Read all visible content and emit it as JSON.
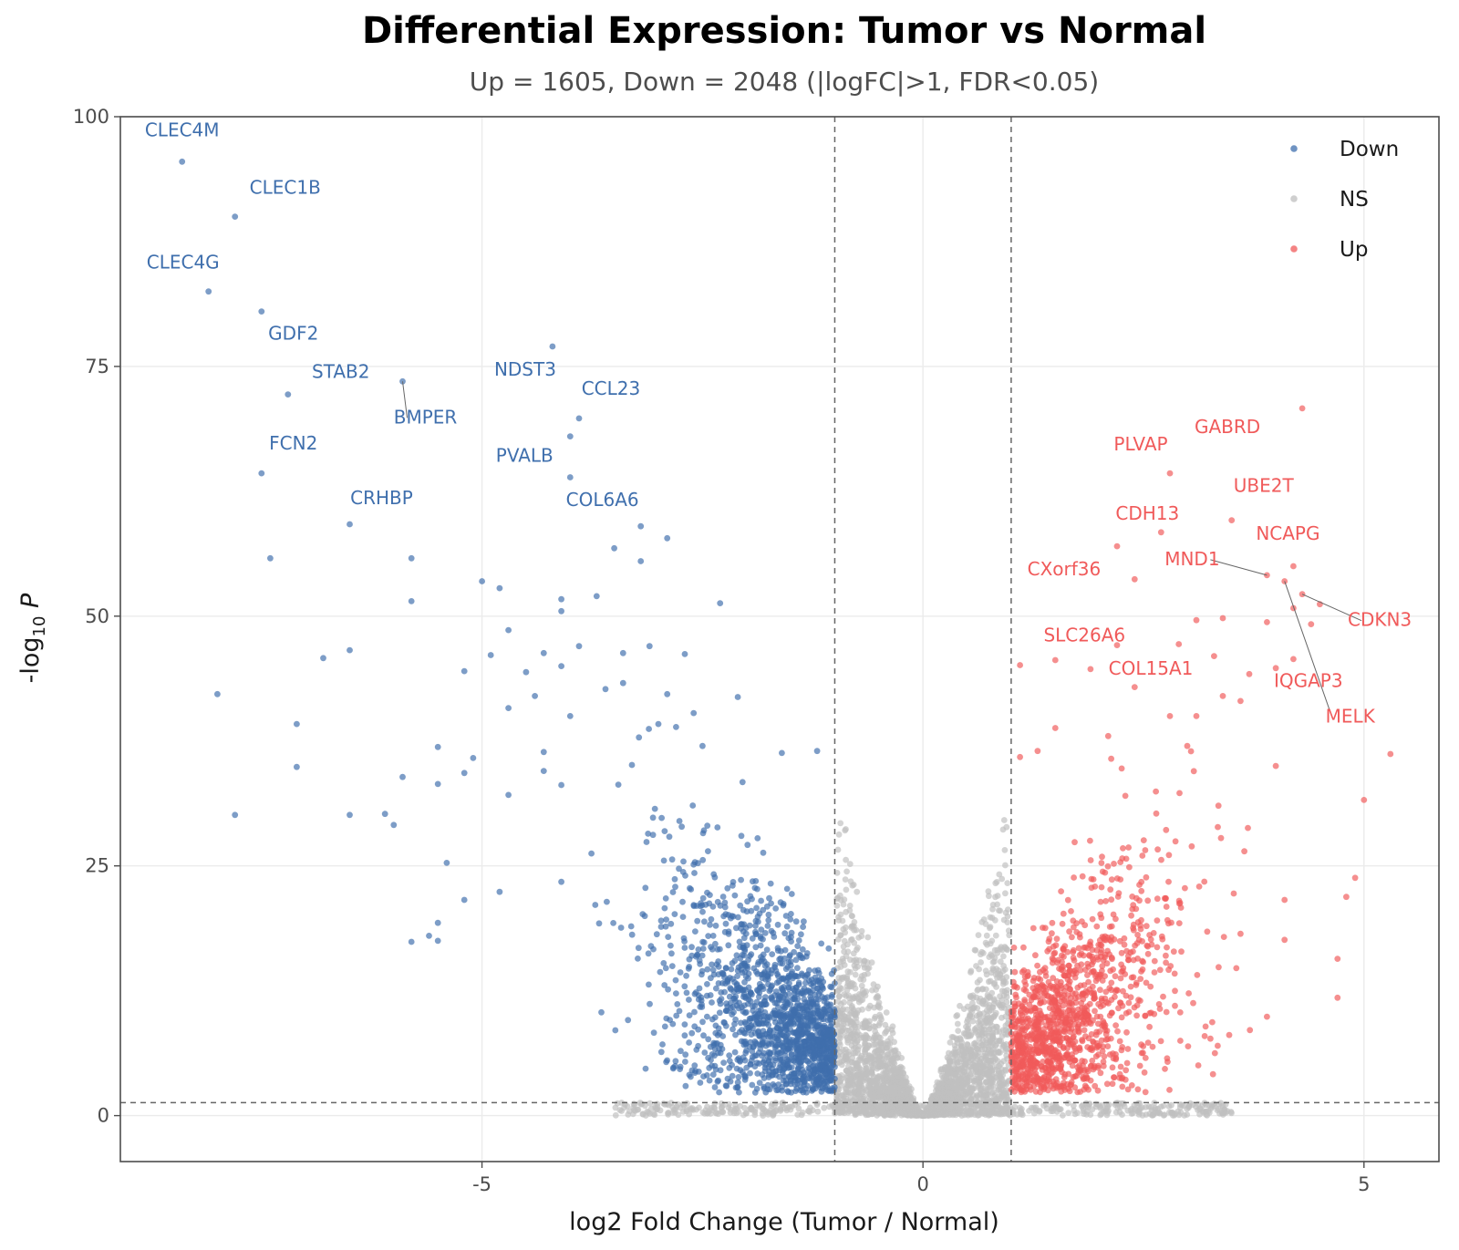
{
  "chart_data": {
    "type": "scatter",
    "title": "Differential Expression: Tumor vs Normal",
    "subtitle": "Up = 1605, Down = 2048  (|logFC|>1, FDR<0.05)",
    "xlabel": "log2 Fold Change (Tumor / Normal)",
    "ylabel": "-log10 P",
    "xlim": [
      -9.1,
      5.85
    ],
    "ylim": [
      -4.6,
      100
    ],
    "x_ticks": [
      -5,
      0,
      5
    ],
    "x_tick_labels": [
      "-5",
      "0",
      "5"
    ],
    "y_ticks": [
      0,
      25,
      50,
      75,
      100
    ],
    "y_tick_labels": [
      "0",
      "25",
      "50",
      "75",
      "100"
    ],
    "thresholds": {
      "logfc": 1,
      "neg_log10_fdr": 1.3
    },
    "grid": true,
    "legend": {
      "placement": "top-right",
      "entries": [
        {
          "label": "Down",
          "color": "#3f6fad"
        },
        {
          "label": "NS",
          "color": "#bfbfbf"
        },
        {
          "label": "Up",
          "color": "#f05a5a"
        }
      ]
    },
    "colors": {
      "Down": "#3f6fad",
      "NS": "#bfbfbf",
      "Up": "#f05a5a"
    },
    "counts": {
      "Up": 1605,
      "Down": 2048
    },
    "highlighted_points": {
      "Down": [
        [
          -8.4,
          95.5
        ],
        [
          -7.8,
          90.0
        ],
        [
          -8.1,
          82.5
        ],
        [
          -7.5,
          80.5
        ],
        [
          -7.2,
          72.2
        ],
        [
          -5.9,
          73.5
        ],
        [
          -7.5,
          64.3
        ],
        [
          -6.5,
          59.2
        ],
        [
          -7.4,
          55.8
        ],
        [
          -4.2,
          77.0
        ],
        [
          -3.9,
          69.8
        ],
        [
          -4.0,
          68.0
        ],
        [
          -4.0,
          63.9
        ],
        [
          -3.2,
          59.0
        ],
        [
          -2.9,
          57.8
        ],
        [
          -3.5,
          56.8
        ],
        [
          -3.2,
          55.5
        ],
        [
          -5.8,
          55.8
        ],
        [
          -5.0,
          53.5
        ],
        [
          -4.8,
          52.8
        ],
        [
          -3.7,
          52.0
        ],
        [
          -4.1,
          51.7
        ],
        [
          -4.1,
          50.5
        ],
        [
          -5.8,
          51.5
        ],
        [
          -2.3,
          51.3
        ],
        [
          -6.5,
          46.6
        ],
        [
          -6.8,
          45.8
        ],
        [
          -8.0,
          42.2
        ],
        [
          -7.1,
          39.2
        ],
        [
          -7.1,
          34.9
        ],
        [
          -7.8,
          30.1
        ],
        [
          -6.5,
          30.1
        ],
        [
          -6.1,
          30.2
        ],
        [
          -5.9,
          33.9
        ],
        [
          -5.5,
          33.2
        ],
        [
          -5.2,
          34.3
        ],
        [
          -5.1,
          35.8
        ],
        [
          -5.5,
          36.9
        ],
        [
          -5.4,
          25.3
        ],
        [
          -5.2,
          21.6
        ],
        [
          -5.8,
          17.4
        ],
        [
          -5.6,
          18.0
        ],
        [
          -5.5,
          19.3
        ],
        [
          -5.5,
          17.5
        ],
        [
          -6.0,
          29.1
        ],
        [
          -4.7,
          48.6
        ],
        [
          -4.9,
          46.1
        ],
        [
          -4.5,
          44.4
        ],
        [
          -4.3,
          46.3
        ],
        [
          -4.1,
          45.0
        ],
        [
          -4.0,
          40.0
        ],
        [
          -3.9,
          47.0
        ],
        [
          -3.4,
          46.3
        ],
        [
          -3.1,
          47.0
        ],
        [
          -2.7,
          46.2
        ],
        [
          -2.9,
          42.2
        ],
        [
          -2.6,
          40.3
        ],
        [
          -2.1,
          41.9
        ],
        [
          -3.0,
          39.2
        ],
        [
          -4.3,
          36.4
        ],
        [
          -4.3,
          34.5
        ],
        [
          -4.1,
          33.1
        ],
        [
          -4.7,
          32.1
        ],
        [
          -3.3,
          35.1
        ],
        [
          -2.5,
          37.0
        ],
        [
          -1.6,
          36.3
        ],
        [
          -1.2,
          36.5
        ],
        [
          -4.1,
          23.4
        ],
        [
          -4.8,
          22.4
        ],
        [
          -5.2,
          44.5
        ],
        [
          -4.4,
          42.0
        ],
        [
          -3.6,
          42.7
        ],
        [
          -3.4,
          43.3
        ],
        [
          -2.8,
          38.9
        ],
        [
          -4.7,
          40.8
        ]
      ],
      "Up": [
        [
          4.3,
          70.8
        ],
        [
          2.8,
          64.3
        ],
        [
          3.5,
          59.6
        ],
        [
          2.7,
          58.4
        ],
        [
          2.2,
          57.0
        ],
        [
          2.4,
          53.7
        ],
        [
          4.1,
          53.5
        ],
        [
          3.9,
          54.1
        ],
        [
          4.2,
          55.0
        ],
        [
          4.3,
          52.2
        ],
        [
          4.5,
          51.2
        ],
        [
          4.2,
          50.8
        ],
        [
          4.4,
          49.2
        ],
        [
          5.3,
          36.2
        ],
        [
          5.0,
          31.6
        ],
        [
          4.0,
          35.0
        ],
        [
          4.8,
          21.9
        ],
        [
          4.9,
          23.8
        ],
        [
          4.7,
          15.7
        ],
        [
          4.7,
          11.8
        ],
        [
          4.1,
          21.6
        ],
        [
          4.1,
          17.6
        ],
        [
          3.6,
          18.2
        ],
        [
          3.9,
          9.9
        ],
        [
          3.1,
          49.6
        ],
        [
          3.4,
          49.8
        ],
        [
          3.9,
          49.4
        ],
        [
          2.9,
          47.2
        ],
        [
          2.2,
          47.1
        ],
        [
          1.9,
          44.7
        ],
        [
          1.5,
          45.6
        ],
        [
          1.1,
          45.1
        ],
        [
          3.3,
          46.0
        ],
        [
          3.7,
          44.2
        ],
        [
          3.4,
          42.0
        ],
        [
          3.1,
          40.0
        ],
        [
          2.8,
          40.0
        ],
        [
          2.4,
          42.9
        ],
        [
          2.1,
          38.0
        ],
        [
          1.5,
          38.8
        ],
        [
          1.3,
          36.5
        ],
        [
          1.1,
          35.9
        ],
        [
          3.6,
          41.5
        ],
        [
          4.0,
          44.8
        ],
        [
          4.2,
          45.7
        ]
      ]
    },
    "point_cloud_note_free": [],
    "gene_labels": {
      "Down": [
        {
          "gene": "CLEC4M",
          "x": -8.4,
          "y": 95.5
        },
        {
          "gene": "CLEC1B",
          "x": -7.8,
          "y": 90.0
        },
        {
          "gene": "CLEC4G",
          "x": -8.1,
          "y": 82.5
        },
        {
          "gene": "GDF2",
          "x": -7.5,
          "y": 80.5
        },
        {
          "gene": "STAB2",
          "x": -7.2,
          "y": 72.2
        },
        {
          "gene": "BMPER",
          "x": -5.9,
          "y": 73.5
        },
        {
          "gene": "NDST3",
          "x": -4.2,
          "y": 77.0
        },
        {
          "gene": "CCL23",
          "x": -3.9,
          "y": 69.8
        },
        {
          "gene": "FCN2",
          "x": -7.5,
          "y": 64.3
        },
        {
          "gene": "PVALB",
          "x": -4.0,
          "y": 63.9
        },
        {
          "gene": "CRHBP",
          "x": -6.5,
          "y": 59.2
        },
        {
          "gene": "COL6A6",
          "x": -3.2,
          "y": 59.0
        }
      ],
      "Up": [
        {
          "gene": "GABRD",
          "x": 4.3,
          "y": 70.8
        },
        {
          "gene": "PLVAP",
          "x": 2.8,
          "y": 64.3
        },
        {
          "gene": "UBE2T",
          "x": 3.5,
          "y": 59.6
        },
        {
          "gene": "CDH13",
          "x": 2.7,
          "y": 58.4
        },
        {
          "gene": "NCAPG",
          "x": 4.2,
          "y": 55.0
        },
        {
          "gene": "CXorf36",
          "x": 2.2,
          "y": 57.0
        },
        {
          "gene": "MND1",
          "x": 3.9,
          "y": 54.1
        },
        {
          "gene": "CDKN3",
          "x": 4.3,
          "y": 52.2
        },
        {
          "gene": "SLC26A6",
          "x": 2.4,
          "y": 53.7
        },
        {
          "gene": "COL15A1",
          "x": 3.4,
          "y": 49.8
        },
        {
          "gene": "IQGAP3",
          "x": 4.4,
          "y": 49.2
        },
        {
          "gene": "MELK",
          "x": 4.1,
          "y": 53.5
        }
      ]
    }
  }
}
